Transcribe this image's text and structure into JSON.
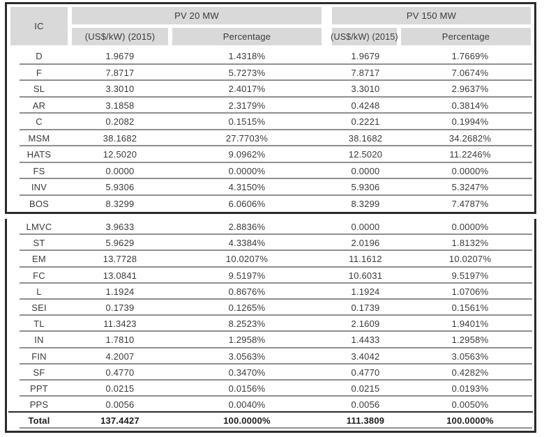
{
  "table": {
    "corner": "IC",
    "group_headers": [
      "PV 20 MW",
      "PV 150 MW"
    ],
    "sub_headers": [
      "(US$/kW) (2015)",
      "Percentage",
      "(US$/kW) (2015)",
      "Percentage"
    ],
    "rows_top": [
      {
        "label": "D",
        "values": [
          "1.9679",
          "1.4318%",
          "1.9679",
          "1.7669%"
        ]
      },
      {
        "label": "F",
        "values": [
          "7.8717",
          "5.7273%",
          "7.8717",
          "7.0674%"
        ]
      },
      {
        "label": "SL",
        "values": [
          "3.3010",
          "2.4017%",
          "3.3010",
          "2.9637%"
        ]
      },
      {
        "label": "AR",
        "values": [
          "3.1858",
          "2.3179%",
          "0.4248",
          "0.3814%"
        ]
      },
      {
        "label": "C",
        "values": [
          "0.2082",
          "0.1515%",
          "0.2221",
          "0.1994%"
        ]
      },
      {
        "label": "MSM",
        "values": [
          "38.1682",
          "27.7703%",
          "38.1682",
          "34.2682%"
        ]
      },
      {
        "label": "HATS",
        "values": [
          "12.5020",
          "9.0962%",
          "12.5020",
          "11.2246%"
        ]
      },
      {
        "label": "FS",
        "values": [
          "0.0000",
          "0.0000%",
          "0.0000",
          "0.0000%"
        ]
      },
      {
        "label": "INV",
        "values": [
          "5.9306",
          "4.3150%",
          "5.9306",
          "5.3247%"
        ]
      },
      {
        "label": "BOS",
        "values": [
          "8.3299",
          "6.0606%",
          "8.3299",
          "7.4787%"
        ]
      }
    ],
    "rows_bottom": [
      {
        "label": "LMVC",
        "values": [
          "3.9633",
          "2.8836%",
          "0.0000",
          "0.0000%"
        ]
      },
      {
        "label": "ST",
        "values": [
          "5.9629",
          "4.3384%",
          "2.0196",
          "1.8132%"
        ]
      },
      {
        "label": "EM",
        "values": [
          "13.7728",
          "10.0207%",
          "11.1612",
          "10.0207%"
        ]
      },
      {
        "label": "FC",
        "values": [
          "13.0841",
          "9.5197%",
          "10.6031",
          "9.5197%"
        ]
      },
      {
        "label": "L",
        "values": [
          "1.1924",
          "0.8676%",
          "1.1924",
          "1.0706%"
        ]
      },
      {
        "label": "SEI",
        "values": [
          "0.1739",
          "0.1265%",
          "0.1739",
          "0.1561%"
        ]
      },
      {
        "label": "TL",
        "values": [
          "11.3423",
          "8.2523%",
          "2.1609",
          "1.9401%"
        ]
      },
      {
        "label": "IN",
        "values": [
          "1.7810",
          "1.2958%",
          "1.4433",
          "1.2958%"
        ]
      },
      {
        "label": "FIN",
        "values": [
          "4.2007",
          "3.0563%",
          "3.4042",
          "3.0563%"
        ]
      },
      {
        "label": "SF",
        "values": [
          "0.4770",
          "0.3470%",
          "0.4770",
          "0.4282%"
        ]
      },
      {
        "label": "PPT",
        "values": [
          "0.0215",
          "0.0156%",
          "0.0215",
          "0.0193%"
        ]
      },
      {
        "label": "PPS",
        "values": [
          "0.0056",
          "0.0040%",
          "0.0056",
          "0.0050%"
        ]
      }
    ],
    "total_row": {
      "label": "Total",
      "values": [
        "137.4427",
        "100.0000%",
        "111.3809",
        "100.0000%"
      ]
    }
  },
  "colors": {
    "frame": "#2b2b2b",
    "separator": "#8f8f8f",
    "header_bg": "#d9d9d9",
    "text": "#3a3a3a"
  }
}
